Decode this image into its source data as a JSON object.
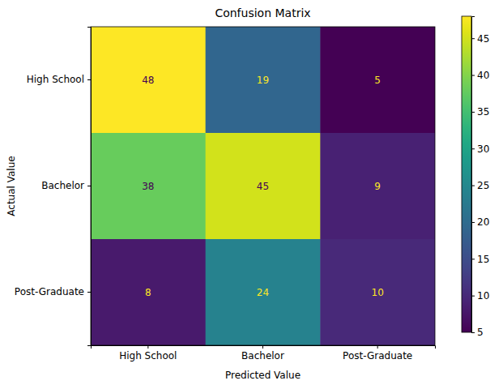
{
  "chart_data": {
    "type": "heatmap",
    "title": "Confusion Matrix",
    "x_label": "Predicted Value",
    "y_label": "Actual Value",
    "x_categories": [
      "High School",
      "Bachelor",
      "Post-Graduate"
    ],
    "y_categories": [
      "High School",
      "Bachelor",
      "Post-Graduate"
    ],
    "cells": [
      [
        48,
        19,
        5
      ],
      [
        38,
        45,
        9
      ],
      [
        8,
        24,
        10
      ]
    ],
    "data_labels": true,
    "color": "viridis",
    "colorbar_lim": [
      5,
      48
    ],
    "colorbar_ticks": [
      5,
      10,
      15,
      20,
      25,
      30,
      35,
      40,
      45
    ]
  }
}
